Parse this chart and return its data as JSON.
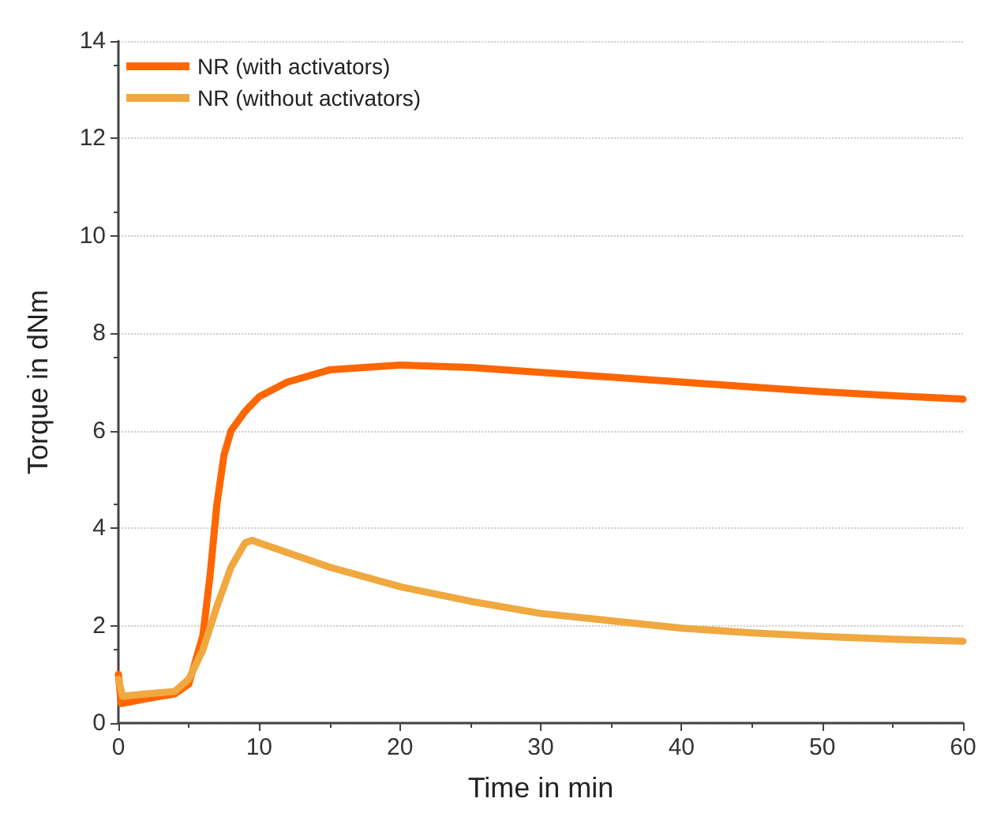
{
  "chart_data": {
    "type": "line",
    "xlabel": "Time in min",
    "ylabel": "Torque in dNm",
    "xlim": [
      0,
      60
    ],
    "xticks": [
      0,
      10,
      20,
      30,
      40,
      50,
      60
    ],
    "ylim": [
      0,
      14
    ],
    "yticks": [
      0,
      2,
      4,
      6,
      8,
      10,
      12,
      14
    ],
    "grid": "y",
    "legend": "top left",
    "line_style": "solid",
    "series": [
      {
        "name": "NR (with activators)",
        "color": "#ff6600",
        "x": [
          0,
          0.2,
          2,
          4,
          5,
          6,
          6.5,
          7,
          7.5,
          8,
          9,
          10,
          12,
          15,
          20,
          25,
          30,
          35,
          40,
          45,
          50,
          55,
          60
        ],
        "values": [
          1.0,
          0.4,
          0.5,
          0.6,
          0.8,
          1.8,
          3,
          4.5,
          5.5,
          6.0,
          6.4,
          6.7,
          7.0,
          7.25,
          7.35,
          7.3,
          7.2,
          7.1,
          7.0,
          6.9,
          6.8,
          6.72,
          6.65
        ]
      },
      {
        "name": "NR (without activators)",
        "color": "#f0a840",
        "x": [
          0,
          0.3,
          2,
          4,
          5,
          6,
          7,
          8,
          9,
          9.5,
          10,
          12,
          15,
          20,
          25,
          30,
          35,
          40,
          45,
          50,
          55,
          60
        ],
        "values": [
          0.9,
          0.55,
          0.6,
          0.65,
          0.9,
          1.5,
          2.4,
          3.2,
          3.7,
          3.75,
          3.7,
          3.5,
          3.2,
          2.8,
          2.5,
          2.25,
          2.1,
          1.95,
          1.85,
          1.78,
          1.72,
          1.68
        ]
      }
    ]
  }
}
